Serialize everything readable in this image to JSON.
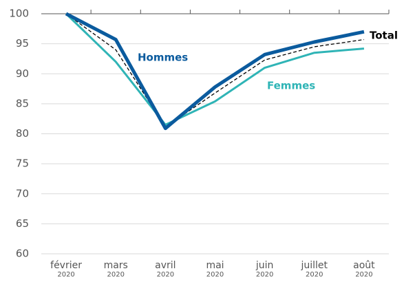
{
  "chart_data": {
    "type": "line",
    "categories": [
      "février 2020",
      "mars 2020",
      "avril 2020",
      "mai 2020",
      "juin 2020",
      "juillet 2020",
      "août 2020"
    ],
    "series": [
      {
        "name": "Femmes",
        "color": "#2fb4b6",
        "values": [
          100,
          92.0,
          81.5,
          85.4,
          91.0,
          93.5,
          94.2
        ]
      },
      {
        "name": "Total",
        "color": "#000000",
        "values": [
          100,
          94.0,
          81.1,
          86.8,
          92.3,
          94.5,
          95.7
        ]
      },
      {
        "name": "Hommes",
        "color": "#0b5b9e",
        "values": [
          100,
          95.7,
          80.9,
          87.8,
          93.2,
          95.3,
          97.0
        ]
      }
    ],
    "ylim": [
      60,
      100
    ],
    "yticks": [
      60,
      65,
      70,
      75,
      80,
      85,
      90,
      95,
      100
    ],
    "grid": true
  }
}
